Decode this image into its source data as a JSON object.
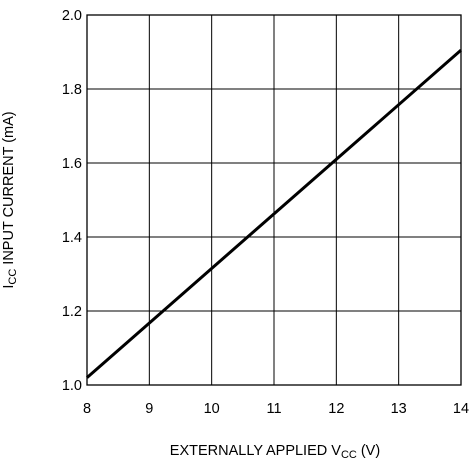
{
  "chart_data": {
    "type": "line",
    "title": "",
    "xlabel": {
      "prefix": "EXTERNALLY APPLIED V",
      "subscript": "CC",
      "suffix": " (V)"
    },
    "ylabel": {
      "prefix": "I",
      "subscript": "CC",
      "suffix": " INPUT CURRENT (mA)"
    },
    "xlim": [
      8,
      14
    ],
    "ylim": [
      1.0,
      2.0
    ],
    "x_ticks": [
      8,
      9,
      10,
      11,
      12,
      13,
      14
    ],
    "y_ticks": [
      1.0,
      1.2,
      1.4,
      1.6,
      1.8,
      2.0
    ],
    "x_tick_labels": [
      "8",
      "9",
      "10",
      "11",
      "12",
      "13",
      "14"
    ],
    "y_tick_labels": [
      "1.0",
      "1.2",
      "1.4",
      "1.6",
      "1.8",
      "2.0"
    ],
    "grid": true,
    "series": [
      {
        "x": [
          8,
          14
        ],
        "y": [
          1.02,
          1.905
        ],
        "color": "#000000"
      }
    ]
  }
}
